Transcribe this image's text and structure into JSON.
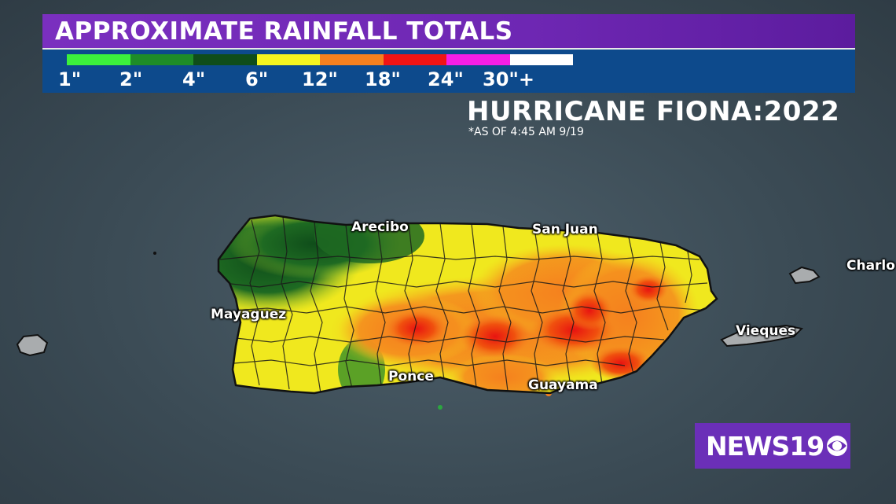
{
  "header": {
    "title": "APPROXIMATE RAINFALL TOTALS"
  },
  "legend": {
    "colors": [
      "#3cf03c",
      "#1e8c28",
      "#0f4d1a",
      "#f5f51e",
      "#f5801e",
      "#f01414",
      "#f51ee6",
      "#ffffff"
    ],
    "labels": [
      "1\"",
      "2\"",
      "4\"",
      "6\"",
      "12\"",
      "18\"",
      "24\"",
      "30\"+"
    ]
  },
  "storm": {
    "title": "HURRICANE FIONA:2022",
    "subtitle": "*AS OF 4:45 AM 9/19"
  },
  "cities": {
    "arecibo": "Arecibo",
    "san_juan": "San Juan",
    "mayaguez": "Mayaguez",
    "ponce": "Ponce",
    "guayama": "Guayama",
    "vieques": "Vieques",
    "charlotte": "Charlo"
  },
  "logo": {
    "text": "NEWS19"
  }
}
